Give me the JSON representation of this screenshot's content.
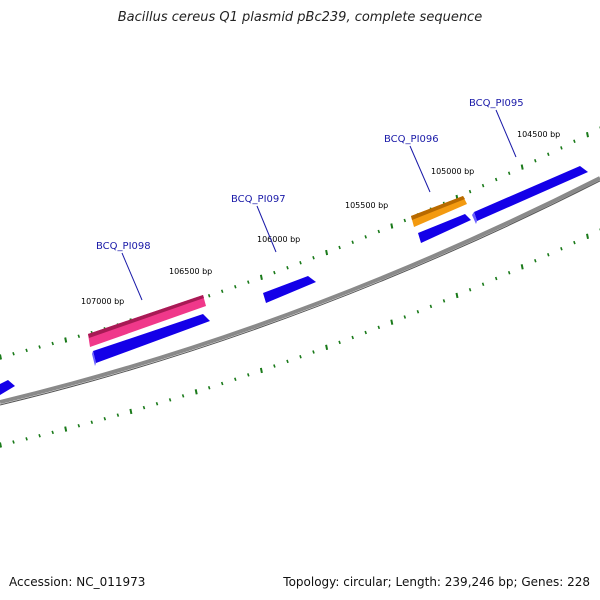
{
  "title": "Bacillus cereus Q1 plasmid pBc239, complete sequence",
  "footer": {
    "accession": "Accession: NC_011973",
    "summary": "Topology: circular; Length: 239,246 bp; Genes: 228"
  },
  "colors": {
    "backbone": "#707070",
    "tick": "#1a7a1a",
    "gene_blue": "#0a00e0",
    "gene_pink": "#e8287a",
    "gene_orange": "#f08a00",
    "gene_label": "#1a1aa8"
  },
  "ruler_labels": [
    "104500 bp",
    "105000 bp",
    "105500 bp",
    "106000 bp",
    "106500 bp",
    "107000 bp"
  ],
  "gene_labels": [
    "BCQ_PI095",
    "BCQ_PI096",
    "BCQ_PI097",
    "BCQ_PI098"
  ]
}
